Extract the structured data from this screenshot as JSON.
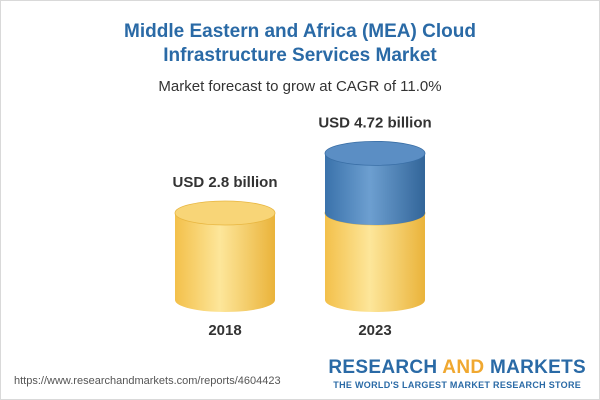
{
  "header": {
    "title_line1": "Middle Eastern and Africa (MEA) Cloud",
    "title_line2": "Infrastructure Services Market",
    "subtitle": "Market forecast to grow at CAGR of 11.0%"
  },
  "chart_data": {
    "type": "bar",
    "style": "3d-cylinder",
    "categories": [
      "2018",
      "2023"
    ],
    "values": [
      2.8,
      4.72
    ],
    "data_labels": [
      "USD 2.8 billion",
      "USD 4.72 billion"
    ],
    "unit": "USD billion",
    "colors": {
      "base": "#f5c650",
      "growth": "#3f79b3"
    }
  },
  "footer": {
    "url": "https://www.researchandmarkets.com/reports/4604423",
    "brand_part1": "RESEARCH ",
    "brand_and": "AND",
    "brand_part2": " MARKETS",
    "tagline": "THE WORLD'S LARGEST MARKET RESEARCH STORE"
  }
}
